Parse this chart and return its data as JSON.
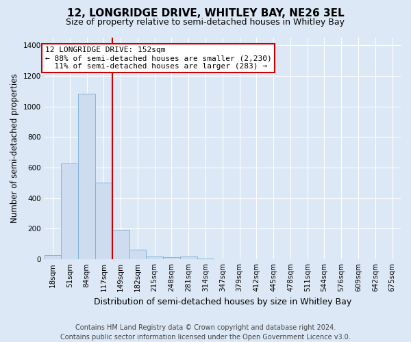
{
  "title": "12, LONGRIDGE DRIVE, WHITLEY BAY, NE26 3EL",
  "subtitle": "Size of property relative to semi-detached houses in Whitley Bay",
  "xlabel": "Distribution of semi-detached houses by size in Whitley Bay",
  "ylabel": "Number of semi-detached properties",
  "footnote": "Contains HM Land Registry data © Crown copyright and database right 2024.\nContains public sector information licensed under the Open Government Licence v3.0.",
  "bin_labels": [
    "18sqm",
    "51sqm",
    "84sqm",
    "117sqm",
    "149sqm",
    "182sqm",
    "215sqm",
    "248sqm",
    "281sqm",
    "314sqm",
    "347sqm",
    "379sqm",
    "412sqm",
    "445sqm",
    "478sqm",
    "511sqm",
    "544sqm",
    "576sqm",
    "609sqm",
    "642sqm",
    "675sqm"
  ],
  "bar_values": [
    28,
    625,
    1085,
    500,
    195,
    65,
    20,
    15,
    20,
    5,
    0,
    0,
    0,
    0,
    0,
    0,
    0,
    0,
    0,
    0,
    0
  ],
  "bar_color": "#cddcee",
  "bar_edge_color": "#7aaed6",
  "highlight_line_color": "#cc0000",
  "annotation_line1": "12 LONGRIDGE DRIVE: 152sqm",
  "annotation_line2": "← 88% of semi-detached houses are smaller (2,230)",
  "annotation_line3": "  11% of semi-detached houses are larger (283) →",
  "annotation_box_color": "#ffffff",
  "annotation_box_edge_color": "#cc0000",
  "ylim": [
    0,
    1450
  ],
  "yticks": [
    0,
    200,
    400,
    600,
    800,
    1000,
    1200,
    1400
  ],
  "background_color": "#dce8f5",
  "plot_bg_color": "#dce8f5",
  "grid_color": "#ffffff",
  "title_fontsize": 11,
  "subtitle_fontsize": 9,
  "ylabel_fontsize": 8.5,
  "xlabel_fontsize": 9,
  "tick_fontsize": 7.5,
  "annotation_fontsize": 8,
  "footnote_fontsize": 7
}
